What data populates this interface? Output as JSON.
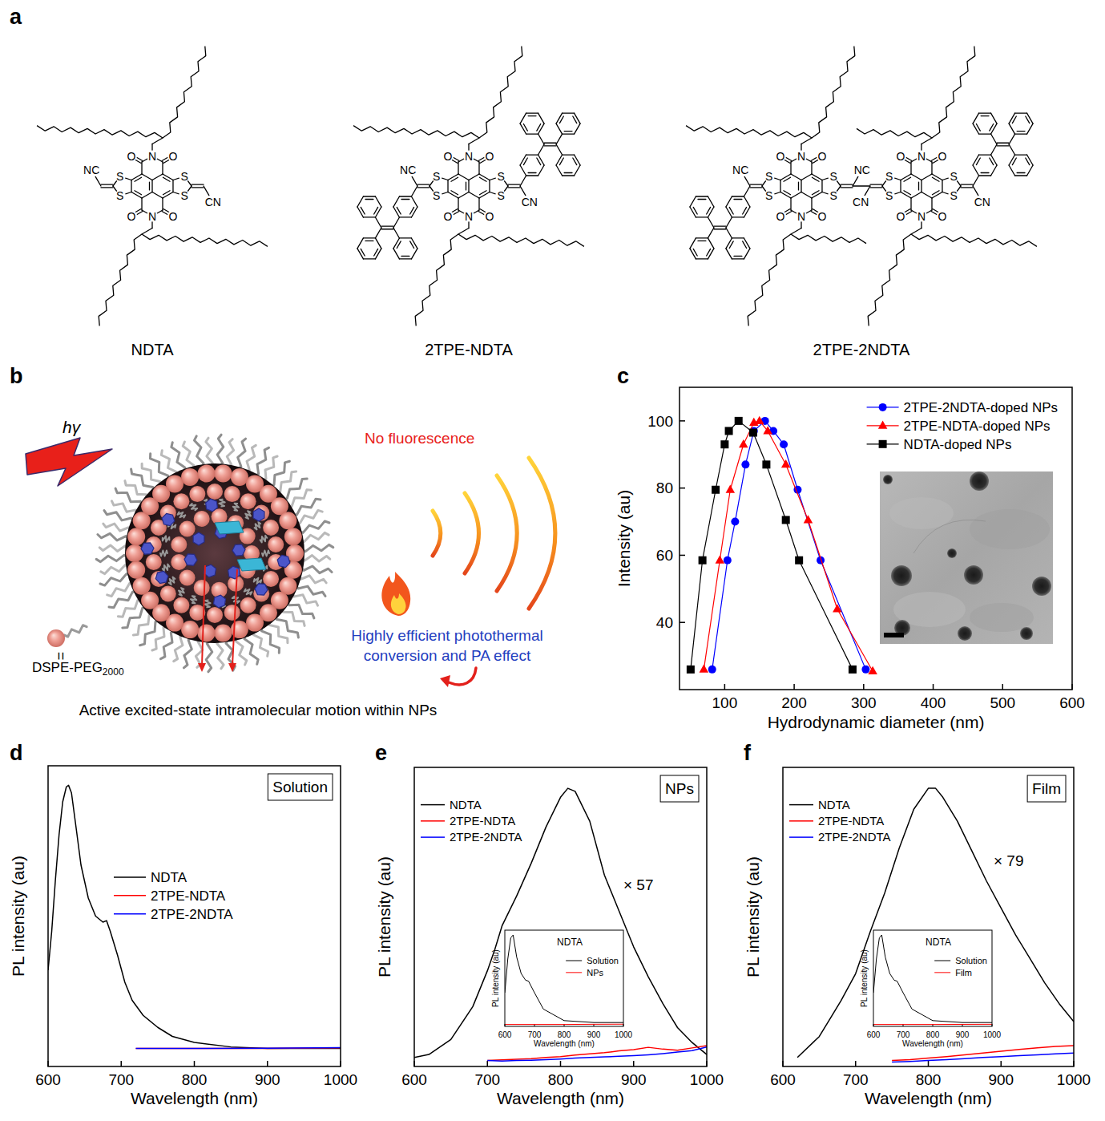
{
  "panel_labels": [
    "a",
    "b",
    "c",
    "d",
    "e",
    "f"
  ],
  "structures": [
    "NDTA",
    "2TPE-NDTA",
    "2TPE-2NDTA"
  ],
  "atom_labels": {
    "oxygen": "O",
    "nitrogen": "N",
    "sulfur": "S",
    "cyano": "CN",
    "cyano_reversed": "NC"
  },
  "schematic": {
    "excitation": "hγ",
    "no_fluorescence": "No fluorescence",
    "photothermal": [
      "Highly efficient photothermal",
      "conversion and PA effect"
    ],
    "motion": "Active excited-state intramolecular motion within NPs",
    "equals": "=",
    "lipid": "DSPE-PEG",
    "lipid_subscript": "2000"
  },
  "chart_data": [
    {
      "type": "line",
      "x_label": "Hydrodynamic diameter (nm)",
      "y_label": "Intensity (au)",
      "xlim": [
        35,
        600
      ],
      "xticks": [
        100,
        200,
        300,
        400,
        500,
        600
      ],
      "ylim": [
        20,
        110
      ],
      "yticks": [
        40,
        60,
        80,
        100
      ],
      "legend": "upper right",
      "series": [
        {
          "name": "2TPE-2NDTA-doped NPs",
          "color": "#0000ff",
          "marker": "circle",
          "x": [
            82,
            104,
            115,
            130,
            142,
            158,
            170,
            185,
            205,
            238,
            303
          ],
          "values": [
            26,
            58.5,
            70,
            87,
            97,
            100,
            97,
            93,
            79.5,
            58.5,
            26
          ]
        },
        {
          "name": "2TPE-NDTA-doped NPs",
          "color": "#ff0000",
          "marker": "triangle",
          "x": [
            70,
            93,
            108,
            127,
            142,
            150,
            162,
            188,
            220,
            262,
            313
          ],
          "values": [
            26,
            58.5,
            79.5,
            93,
            99.5,
            100,
            97,
            87,
            70.5,
            44,
            25.5
          ]
        },
        {
          "name": "NDTA-doped NPs",
          "color": "#000000",
          "marker": "square",
          "x": [
            51,
            68,
            87,
            100,
            106,
            120,
            141,
            160,
            188,
            207,
            284
          ],
          "values": [
            26,
            58.5,
            79.5,
            93,
            97,
            100,
            96.5,
            87,
            70.5,
            58.5,
            26
          ]
        }
      ]
    },
    {
      "type": "line",
      "title": "Solution",
      "x_label": "Wavelength (nm)",
      "y_label": "PL intensity (au)",
      "xlim": [
        600,
        1000
      ],
      "xticks": [
        600,
        700,
        800,
        900,
        1000
      ],
      "ylim": [
        0,
        100
      ],
      "tick_labels": "x",
      "legend": "center left",
      "series": [
        {
          "name": "NDTA",
          "color": "#000000",
          "x": [
            600,
            605,
            610,
            615,
            620,
            625,
            628,
            632,
            638,
            645,
            655,
            665,
            675,
            680,
            685,
            695,
            705,
            715,
            730,
            750,
            770,
            800,
            850,
            900,
            1000
          ],
          "values": [
            32,
            45,
            62,
            77,
            88,
            93,
            93.5,
            91,
            80,
            67,
            56,
            50,
            48,
            48.5,
            45,
            37,
            28,
            22,
            17,
            13,
            10,
            8,
            6.5,
            6,
            6
          ]
        },
        {
          "name": "2TPE-NDTA",
          "color": "#ff0000",
          "x": [
            720,
            800,
            900,
            1000
          ],
          "values": [
            6,
            6,
            6,
            6.2
          ]
        },
        {
          "name": "2TPE-2NDTA",
          "color": "#0000ff",
          "x": [
            720,
            800,
            900,
            1000
          ],
          "values": [
            6,
            6,
            6.1,
            6.3
          ]
        }
      ]
    },
    {
      "type": "line",
      "title": "NPs",
      "x_label": "Wavelength (nm)",
      "y_label": "PL intensity (au)",
      "xlim": [
        600,
        1000
      ],
      "xticks": [
        600,
        700,
        800,
        900,
        1000
      ],
      "ylim": [
        0,
        100
      ],
      "tick_labels": "x",
      "legend": "upper left",
      "annotations": [
        "× 57"
      ],
      "series": [
        {
          "name": "NDTA",
          "color": "#000000",
          "x": [
            600,
            620,
            650,
            680,
            700,
            710,
            720,
            740,
            760,
            780,
            800,
            810,
            820,
            840,
            860,
            880,
            900,
            920,
            940,
            960,
            980,
            1000
          ],
          "values": [
            3,
            4,
            9,
            20,
            32,
            39,
            47,
            57,
            68,
            80,
            90,
            93,
            92,
            82,
            64,
            52,
            40,
            30,
            21,
            13,
            8,
            4
          ]
        },
        {
          "name": "2TPE-NDTA",
          "color": "#ff0000",
          "x": [
            700,
            720,
            740,
            760,
            780,
            800,
            820,
            840,
            860,
            880,
            900,
            920,
            940,
            960,
            980,
            1000
          ],
          "values": [
            2,
            2.2,
            2.4,
            2.6,
            3,
            3.3,
            3.8,
            4.2,
            4.6,
            5.2,
            5.6,
            6.4,
            5.8,
            5.4,
            6.2,
            7
          ]
        },
        {
          "name": "2TPE-2NDTA",
          "color": "#0000ff",
          "x": [
            700,
            720,
            740,
            760,
            780,
            800,
            820,
            840,
            860,
            880,
            900,
            920,
            940,
            960,
            980,
            1000
          ],
          "values": [
            2,
            1.8,
            2,
            2.1,
            2.3,
            2.5,
            2.8,
            3,
            3.2,
            3.4,
            3.6,
            3.9,
            4.3,
            4.8,
            5.3,
            6.5
          ]
        }
      ]
    },
    {
      "type": "line",
      "title": "NDTA",
      "x_label": "Wavelength (nm)",
      "y_label": "PL intensity (au)",
      "xlim": [
        600,
        1000
      ],
      "xticks": [
        600,
        700,
        800,
        900,
        1000
      ],
      "ylim": [
        0,
        100
      ],
      "tick_labels": "x",
      "legend": "upper right",
      "series": [
        {
          "name": "Solution",
          "color": "#000000",
          "x": [
            600,
            610,
            620,
            628,
            640,
            655,
            670,
            680,
            700,
            730,
            800,
            900,
            1000
          ],
          "values": [
            35,
            70,
            92,
            95,
            72,
            55,
            48,
            47,
            35,
            18,
            6,
            4,
            4
          ]
        },
        {
          "name": "NPs",
          "color": "#ff0000",
          "x": [
            600,
            700,
            800,
            900,
            1000
          ],
          "values": [
            2,
            2,
            2,
            2.2,
            2.3
          ]
        }
      ]
    },
    {
      "type": "line",
      "title": "Film",
      "x_label": "Wavelength (nm)",
      "y_label": "PL intensity (au)",
      "xlim": [
        600,
        1000
      ],
      "xticks": [
        600,
        700,
        800,
        900,
        1000
      ],
      "ylim": [
        0,
        100
      ],
      "tick_labels": "x",
      "legend": "upper left",
      "annotations": [
        "× 79"
      ],
      "series": [
        {
          "name": "NDTA",
          "color": "#000000",
          "x": [
            620,
            650,
            680,
            700,
            720,
            740,
            760,
            780,
            800,
            810,
            820,
            840,
            860,
            880,
            900,
            920,
            940,
            960,
            980,
            1000
          ],
          "values": [
            3,
            10,
            22,
            31,
            45,
            58,
            73,
            86,
            93,
            93,
            90,
            82,
            72,
            62,
            53,
            44,
            36,
            28,
            21,
            15
          ]
        },
        {
          "name": "2TPE-NDTA",
          "color": "#ff0000",
          "x": [
            750,
            775,
            800,
            825,
            850,
            875,
            900,
            925,
            950,
            975,
            1000
          ],
          "values": [
            2,
            2.3,
            2.8,
            3.3,
            3.9,
            4.5,
            5.1,
            5.7,
            6.2,
            6.7,
            7
          ]
        },
        {
          "name": "2TPE-2NDTA",
          "color": "#0000ff",
          "x": [
            750,
            775,
            800,
            825,
            850,
            875,
            900,
            925,
            950,
            975,
            1000
          ],
          "values": [
            1.5,
            1.7,
            2,
            2.3,
            2.6,
            3,
            3.3,
            3.6,
            3.9,
            4.2,
            4.5
          ]
        }
      ]
    },
    {
      "type": "line",
      "title": "NDTA",
      "x_label": "Wavelength (nm)",
      "y_label": "PL intensity (au)",
      "xlim": [
        600,
        1000
      ],
      "xticks": [
        600,
        700,
        800,
        900,
        1000
      ],
      "ylim": [
        0,
        100
      ],
      "tick_labels": "x",
      "legend": "upper right",
      "series": [
        {
          "name": "Solution",
          "color": "#000000",
          "x": [
            600,
            610,
            620,
            628,
            640,
            655,
            670,
            680,
            700,
            730,
            800,
            900,
            1000
          ],
          "values": [
            35,
            70,
            92,
            95,
            72,
            55,
            48,
            47,
            35,
            18,
            6,
            4,
            4
          ]
        },
        {
          "name": "Film",
          "color": "#ff0000",
          "x": [
            600,
            700,
            800,
            900,
            1000
          ],
          "values": [
            2,
            2,
            2,
            2.1,
            2.2
          ]
        }
      ]
    }
  ]
}
